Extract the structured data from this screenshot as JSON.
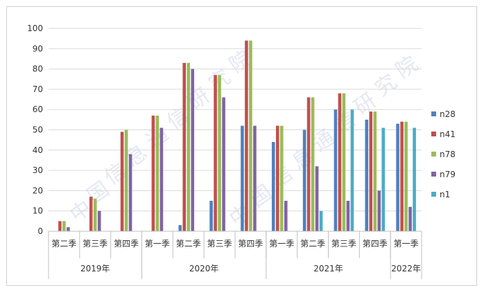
{
  "chart_data": {
    "type": "bar",
    "title": "",
    "xlabel": "",
    "ylabel": "",
    "ylim": [
      0,
      100
    ],
    "yticks": [
      0,
      10,
      20,
      30,
      40,
      50,
      60,
      70,
      80,
      90,
      100
    ],
    "grid": true,
    "legend_position": "right",
    "categories": [
      {
        "quarter": "第二季",
        "year": "2019年"
      },
      {
        "quarter": "第三季",
        "year": "2019年"
      },
      {
        "quarter": "第四季",
        "year": "2019年"
      },
      {
        "quarter": "第一季",
        "year": "2020年"
      },
      {
        "quarter": "第二季",
        "year": "2020年"
      },
      {
        "quarter": "第三季",
        "year": "2020年"
      },
      {
        "quarter": "第四季",
        "year": "2020年"
      },
      {
        "quarter": "第一季",
        "year": "2021年"
      },
      {
        "quarter": "第二季",
        "year": "2021年"
      },
      {
        "quarter": "第三季",
        "year": "2021年"
      },
      {
        "quarter": "第四季",
        "year": "2021年"
      },
      {
        "quarter": "第一季",
        "year": "2022年"
      }
    ],
    "year_groups": [
      {
        "label": "2019年",
        "count": 3
      },
      {
        "label": "2020年",
        "count": 4
      },
      {
        "label": "2021年",
        "count": 4
      },
      {
        "label": "2022年",
        "count": 1
      }
    ],
    "series": [
      {
        "name": "n28",
        "color": "#4f81bd",
        "values": [
          0,
          0,
          0,
          0,
          3,
          15,
          52,
          44,
          50,
          60,
          55,
          53
        ]
      },
      {
        "name": "n41",
        "color": "#c0504d",
        "values": [
          5,
          17,
          49,
          57,
          83,
          77,
          94,
          52,
          66,
          68,
          59,
          54
        ]
      },
      {
        "name": "n78",
        "color": "#9bbb59",
        "values": [
          5,
          16,
          50,
          57,
          83,
          77,
          94,
          52,
          66,
          68,
          59,
          54
        ]
      },
      {
        "name": "n79",
        "color": "#8064a2",
        "values": [
          2,
          10,
          38,
          51,
          80,
          66,
          52,
          15,
          32,
          15,
          20,
          12
        ]
      },
      {
        "name": "n1",
        "color": "#4bacc6",
        "values": [
          0,
          0,
          0,
          0,
          0,
          0,
          0,
          0,
          10,
          60,
          51,
          51
        ]
      }
    ],
    "watermark": [
      "中",
      "国",
      "信",
      "息",
      "通",
      "信",
      "研",
      "究",
      "院"
    ]
  }
}
